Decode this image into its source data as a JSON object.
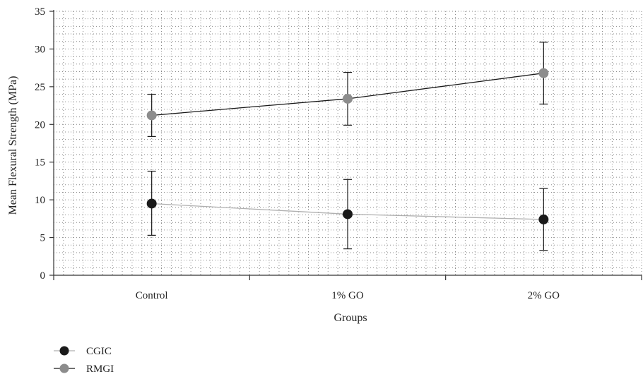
{
  "chart_data": {
    "type": "line",
    "categories": [
      "Control",
      "1% GO",
      "2% GO"
    ],
    "xlabel": "Groups",
    "ylabel": "Mean Flexural Strength (MPa)",
    "ylim": [
      0,
      35
    ],
    "yticks": [
      0,
      5,
      10,
      15,
      20,
      25,
      30,
      35
    ],
    "grid": "dotted",
    "legend_position": "bottom-left",
    "series": [
      {
        "name": "CGIC",
        "color": "#1a1a1a",
        "line_color": "#b0b0b0",
        "values": [
          9.5,
          8.1,
          7.4
        ],
        "error_low": [
          5.3,
          3.5,
          3.3
        ],
        "error_high": [
          13.8,
          12.7,
          11.5
        ]
      },
      {
        "name": "RMGI",
        "color": "#8c8c8c",
        "line_color": "#1a1a1a",
        "values": [
          21.2,
          23.4,
          26.8
        ],
        "error_low": [
          18.4,
          19.9,
          22.7
        ],
        "error_high": [
          24.0,
          26.9,
          30.9
        ]
      }
    ]
  }
}
